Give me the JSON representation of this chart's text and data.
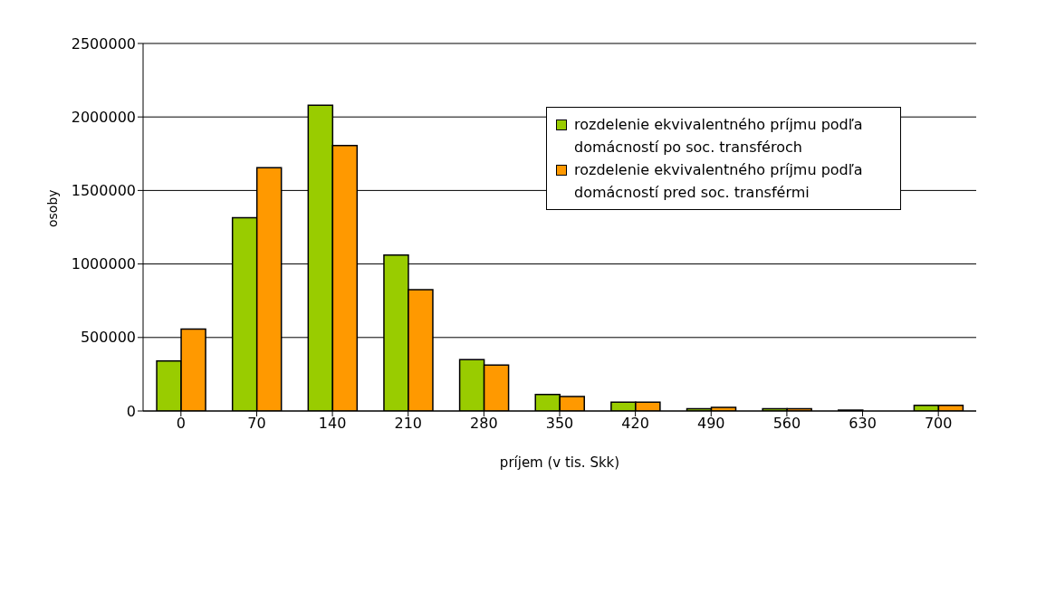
{
  "chart_data": {
    "type": "bar",
    "xlabel": "príjem (v tis. Skk)",
    "ylabel": "osoby",
    "categories": [
      "0",
      "70",
      "140",
      "210",
      "280",
      "350",
      "420",
      "490",
      "560",
      "630",
      "700"
    ],
    "series": [
      {
        "name": "rozdelenie ekvivalentného príjmu podľa domácností po soc. transféroch",
        "color": "#99cc00",
        "values": [
          340000,
          1315000,
          2080000,
          1060000,
          350000,
          113000,
          60000,
          15000,
          15000,
          6000,
          38000
        ]
      },
      {
        "name": "rozdelenie ekvivalentného príjmu podľa domácností pred soc. transférmi",
        "color": "#ff9900",
        "values": [
          558000,
          1655000,
          1805000,
          825000,
          312000,
          98000,
          60000,
          24000,
          15000,
          null,
          38000
        ]
      }
    ],
    "ylim": [
      0,
      2500000
    ],
    "yticks": [
      0,
      500000,
      1000000,
      1500000,
      2000000,
      2500000
    ],
    "grid": "y",
    "legend": "top right"
  }
}
